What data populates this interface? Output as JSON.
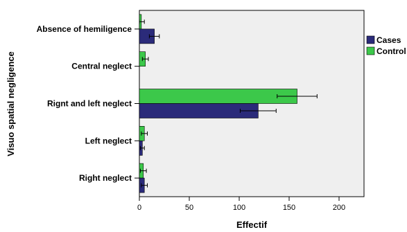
{
  "chart_data": {
    "type": "bar",
    "orientation": "horizontal",
    "categories": [
      "Absence of hemiligence",
      "Central neglect",
      "Rignt and left neglect",
      "Left neglect",
      "Right neglect"
    ],
    "series": [
      {
        "name": "Cases",
        "color": "#2b2b7a",
        "values": [
          15,
          0,
          119,
          3,
          5
        ],
        "error": [
          5,
          0,
          18,
          2,
          3
        ]
      },
      {
        "name": "Control",
        "color": "#3cc84a",
        "values": [
          2,
          6,
          158,
          5,
          4
        ],
        "error": [
          3,
          3,
          20,
          3,
          3
        ]
      }
    ],
    "xlabel": "Effectif",
    "ylabel": "Visuo spatial negligence",
    "xlim": [
      0,
      225
    ],
    "xticks": [
      0,
      50,
      100,
      150,
      200
    ],
    "legend_position": "right",
    "grid": false,
    "plot_background": "#efefef"
  }
}
